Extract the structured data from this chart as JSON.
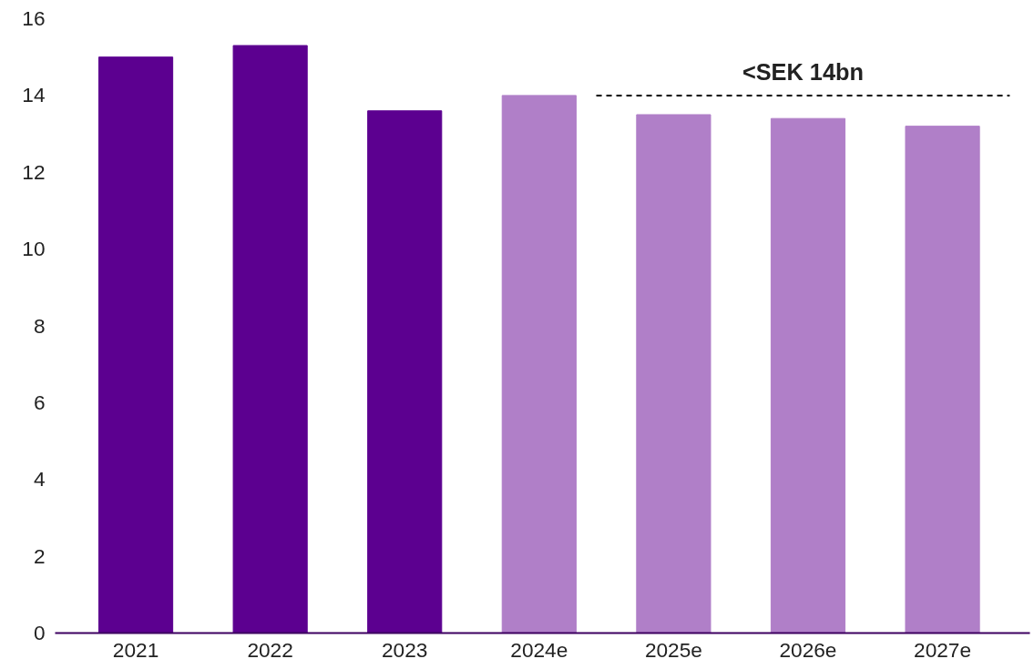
{
  "chart_data": {
    "type": "bar",
    "categories": [
      "2021",
      "2022",
      "2023",
      "2024e",
      "2025e",
      "2026e",
      "2027e"
    ],
    "values": [
      15.0,
      15.3,
      13.6,
      14.0,
      13.5,
      13.4,
      13.2
    ],
    "colors": [
      "#5c0090",
      "#5c0090",
      "#5c0090",
      "#b07fc8",
      "#b07fc8",
      "#b07fc8",
      "#b07fc8"
    ],
    "ylim": [
      0,
      16
    ],
    "yticks": [
      0,
      2,
      4,
      6,
      8,
      10,
      12,
      14,
      16
    ],
    "grid": false,
    "ref_lines": [
      {
        "axis": "y",
        "value": 14,
        "label": "<SEK 14bn",
        "line_style": "dashed",
        "color": "#000000"
      }
    ]
  }
}
